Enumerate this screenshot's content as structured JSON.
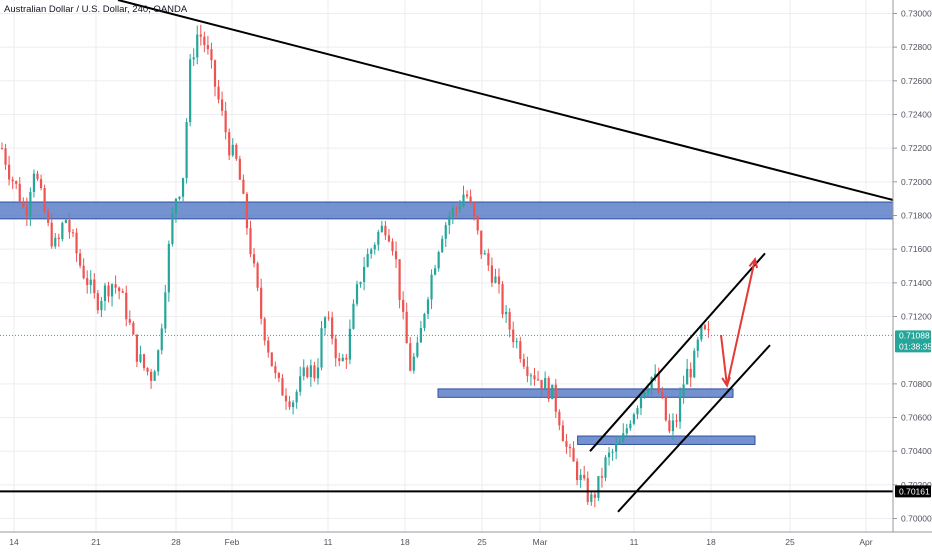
{
  "header": {
    "symbol_title": "Australian Dollar / U.S. Dollar, 240, OANDA"
  },
  "colors": {
    "up": "#26a69a",
    "down": "#ef5350",
    "zone_fill": "#5b7fc7",
    "zone_border": "#2f4f9f",
    "trendline": "#000000",
    "projection_arrow": "#e53935",
    "price_tag_bg": "#26a69a",
    "support_tag_bg": "#000000"
  },
  "price_tags": {
    "current_price": "0.71088",
    "countdown": "01:38:35",
    "support_level": "0.70161"
  },
  "chart_data": {
    "type": "candlestick",
    "title": "Australian Dollar / U.S. Dollar, 240, OANDA",
    "timeframe": "240",
    "x_ticks": [
      "14",
      "21",
      "28",
      "Feb",
      "11",
      "18",
      "25",
      "Mar",
      "11",
      "18",
      "25",
      "Apr"
    ],
    "y_ticks": [
      "0.73000",
      "0.72800",
      "0.72600",
      "0.72400",
      "0.72200",
      "0.72000",
      "0.71800",
      "0.71600",
      "0.71400",
      "0.71200",
      "0.70800",
      "0.70600",
      "0.70400",
      "0.70200",
      "0.70000"
    ],
    "ylim": [
      0.6992,
      0.7308
    ],
    "grid": true,
    "price_path": [
      0.722,
      0.7205,
      0.7195,
      0.718,
      0.721,
      0.719,
      0.717,
      0.716,
      0.718,
      0.7165,
      0.715,
      0.714,
      0.7128,
      0.7135,
      0.714,
      0.7135,
      0.712,
      0.71,
      0.709,
      0.7085,
      0.71,
      0.715,
      0.719,
      0.72,
      0.727,
      0.729,
      0.728,
      0.726,
      0.724,
      0.722,
      0.721,
      0.718,
      0.715,
      0.712,
      0.71,
      0.708,
      0.7075,
      0.707,
      0.708,
      0.709,
      0.7085,
      0.712,
      0.711,
      0.709,
      0.71,
      0.713,
      0.715,
      0.716,
      0.717,
      0.7175,
      0.716,
      0.712,
      0.709,
      0.71,
      0.713,
      0.715,
      0.717,
      0.718,
      0.7185,
      0.7195,
      0.718,
      0.716,
      0.715,
      0.714,
      0.712,
      0.711,
      0.71,
      0.709,
      0.7085,
      0.708,
      0.7075,
      0.706,
      0.704,
      0.703,
      0.702,
      0.701,
      0.702,
      0.7035,
      0.704,
      0.7045,
      0.706,
      0.707,
      0.708,
      0.7085,
      0.707,
      0.705,
      0.706,
      0.7085,
      0.709,
      0.711,
      0.7108
    ],
    "zones": [
      {
        "from": 0.7178,
        "to": 0.7188,
        "x_from_date": "Jan 8",
        "x_to_date": "Apr 8"
      },
      {
        "from": 0.7072,
        "to": 0.7077,
        "x_from_date": "Feb 21",
        "x_to_date": "Mar 20"
      },
      {
        "from": 0.7044,
        "to": 0.7049,
        "x_from_date": "Mar 5",
        "x_to_date": "Mar 22"
      }
    ],
    "horizontal_levels": [
      {
        "value": 0.70161,
        "label": "0.70161"
      }
    ],
    "current_price": 0.71088,
    "annotations": [
      "descending trendline",
      "rising channel",
      "projected path arrows"
    ]
  }
}
